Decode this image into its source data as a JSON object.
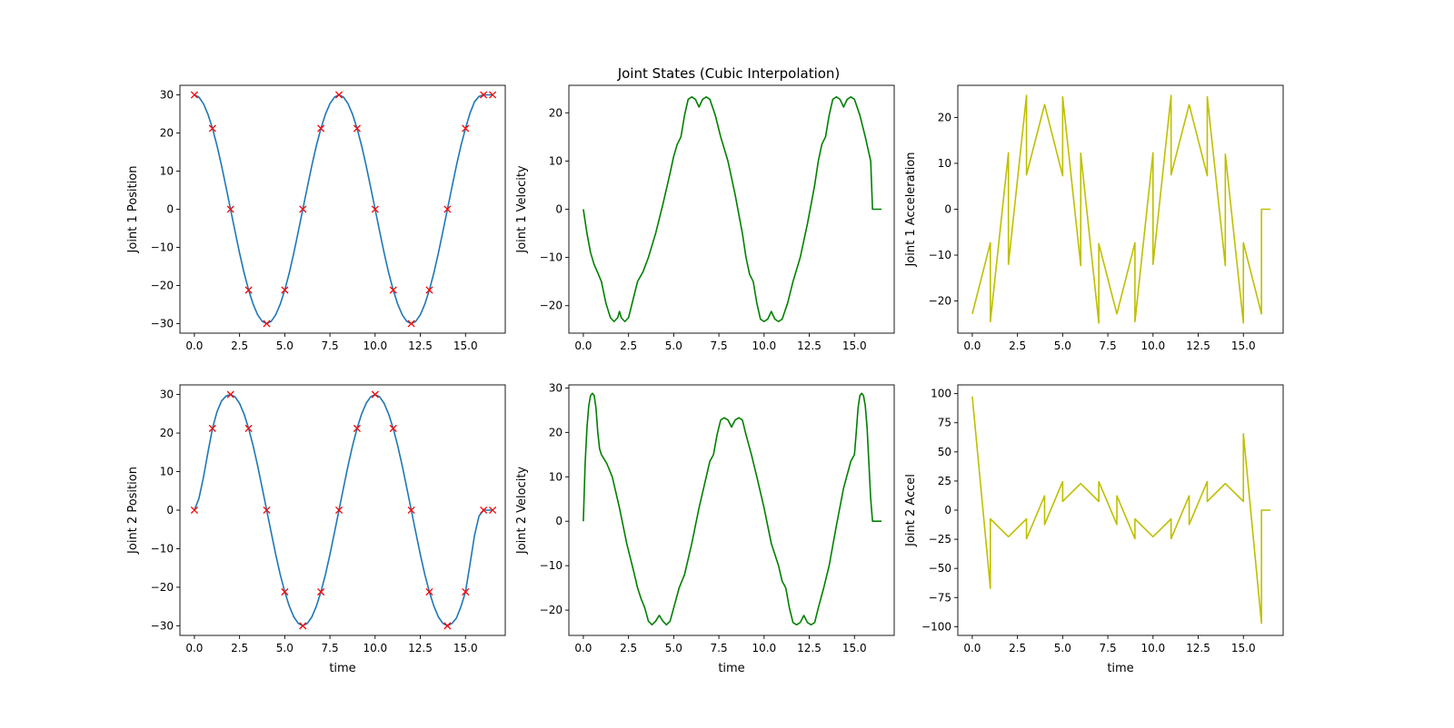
{
  "figure": {
    "title": "Joint States (Cubic Interpolation)",
    "colors": {
      "position": "#1f77b4",
      "velocity": "#008000",
      "acceleration": "#bfbf00",
      "marker": "#ff0000"
    }
  },
  "chart_data": [
    {
      "type": "line",
      "title": "",
      "xlabel": "",
      "ylabel": "Joint 1 Position",
      "xlim": [
        -0.8,
        17.2
      ],
      "ylim": [
        -32.5,
        32.5
      ],
      "xticks": [
        0,
        2.5,
        5,
        7.5,
        10,
        12.5,
        15
      ],
      "xtick_labels": [
        "0.0",
        "2.5",
        "5.0",
        "7.5",
        "10.0",
        "12.5",
        "15.0"
      ],
      "yticks": [
        -30,
        -20,
        -10,
        0,
        10,
        20,
        30
      ],
      "ytick_labels": [
        "−30",
        "−20",
        "−10",
        "0",
        "10",
        "20",
        "30"
      ],
      "series": [
        {
          "kind": "line",
          "color": "#1f77b4",
          "x": [
            0,
            0.25,
            0.5,
            0.75,
            1,
            1.25,
            1.5,
            1.75,
            2,
            2.25,
            2.5,
            2.75,
            3,
            3.25,
            3.5,
            3.75,
            4,
            4.25,
            4.5,
            4.75,
            5,
            5.25,
            5.5,
            5.75,
            6,
            6.25,
            6.5,
            6.75,
            7,
            7.25,
            7.5,
            7.75,
            8,
            8.25,
            8.5,
            8.75,
            9,
            9.25,
            9.5,
            9.75,
            10,
            10.25,
            10.5,
            10.75,
            11,
            11.25,
            11.5,
            11.75,
            12,
            12.25,
            12.5,
            12.75,
            13,
            13.25,
            13.5,
            13.75,
            14,
            14.25,
            14.5,
            14.75,
            15,
            15.25,
            15.5,
            15.75,
            16,
            16.25,
            16.5
          ],
          "y": [
            30,
            29.4,
            27.7,
            24.9,
            21.2,
            16.7,
            11.5,
            5.8,
            0,
            -5.8,
            -11.5,
            -16.7,
            -21.2,
            -24.9,
            -27.7,
            -29.4,
            -30,
            -29.4,
            -27.7,
            -24.9,
            -21.2,
            -16.7,
            -11.5,
            -5.8,
            0,
            5.8,
            11.5,
            16.7,
            21.2,
            24.9,
            27.7,
            29.4,
            30,
            29.4,
            27.7,
            24.9,
            21.2,
            16.7,
            11.5,
            5.8,
            0,
            -5.8,
            -11.5,
            -16.7,
            -21.2,
            -24.9,
            -27.7,
            -29.4,
            -30,
            -29.4,
            -27.7,
            -24.9,
            -21.2,
            -16.7,
            -11.5,
            -5.8,
            0,
            5.8,
            11.5,
            16.7,
            21.2,
            25.2,
            28.2,
            29.6,
            30,
            30,
            30
          ]
        },
        {
          "kind": "marker",
          "color": "#ff0000",
          "x": [
            0,
            1,
            2,
            3,
            4,
            5,
            6,
            7,
            8,
            9,
            10,
            11,
            12,
            13,
            14,
            15,
            16,
            16.5
          ],
          "y": [
            30,
            21.2,
            0,
            -21.2,
            -30,
            -21.2,
            0,
            21.2,
            30,
            21.2,
            0,
            -21.2,
            -30,
            -21.2,
            0,
            21.2,
            30,
            30
          ]
        }
      ]
    },
    {
      "type": "line",
      "title": "",
      "xlabel": "",
      "ylabel": "Joint 1 Velocity",
      "xlim": [
        -0.8,
        17.2
      ],
      "ylim": [
        -25.7,
        25.7
      ],
      "xticks": [
        0,
        2.5,
        5,
        7.5,
        10,
        12.5,
        15
      ],
      "xtick_labels": [
        "0.0",
        "2.5",
        "5.0",
        "7.5",
        "10.0",
        "12.5",
        "15.0"
      ],
      "yticks": [
        -20,
        -10,
        0,
        10,
        20
      ],
      "ytick_labels": [
        "−20",
        "−10",
        "0",
        "10",
        "20"
      ],
      "series": [
        {
          "kind": "line",
          "color": "#008000",
          "x": [
            0,
            0.2,
            0.4,
            0.6,
            0.8,
            1,
            1.25,
            1.5,
            1.7,
            1.9,
            2,
            2.1,
            2.3,
            2.5,
            2.7,
            3,
            3.3,
            3.6,
            4,
            4.4,
            4.8,
            5,
            5.2,
            5.4,
            5.6,
            5.8,
            6,
            6.2,
            6.4,
            6.6,
            6.8,
            7,
            7.3,
            7.6,
            8,
            8.4,
            8.8,
            9,
            9.2,
            9.4,
            9.6,
            9.8,
            10,
            10.2,
            10.4,
            10.6,
            10.8,
            11,
            11.3,
            11.6,
            12,
            12.4,
            12.8,
            13,
            13.2,
            13.4,
            13.6,
            13.8,
            14,
            14.2,
            14.4,
            14.6,
            14.8,
            15,
            15.3,
            15.6,
            15.9,
            16,
            16.5
          ],
          "y": [
            0,
            -5,
            -9,
            -11.5,
            -13.2,
            -15,
            -19.5,
            -22.5,
            -23.3,
            -22.5,
            -21.2,
            -22.5,
            -23.3,
            -22.5,
            -19.5,
            -15,
            -13,
            -10,
            -5,
            1,
            7.5,
            11,
            13.5,
            15,
            19.5,
            22.8,
            23.3,
            22.8,
            21.2,
            22.8,
            23.3,
            22.8,
            19.5,
            15,
            10,
            3,
            -5,
            -10,
            -13.5,
            -15,
            -19.5,
            -22.8,
            -23.3,
            -22.8,
            -21.2,
            -22.8,
            -23.3,
            -22.8,
            -19.5,
            -15,
            -10,
            -3,
            5,
            10,
            13.5,
            15,
            19.5,
            22.8,
            23.3,
            22.8,
            21.2,
            22.8,
            23.3,
            22.8,
            19.5,
            15,
            10,
            0,
            0
          ]
        }
      ]
    },
    {
      "type": "line",
      "title": "",
      "xlabel": "",
      "ylabel": "Joint 1 Acceleration",
      "xlim": [
        -0.8,
        17.2
      ],
      "ylim": [
        -27,
        27
      ],
      "xticks": [
        0,
        2.5,
        5,
        7.5,
        10,
        12.5,
        15
      ],
      "xtick_labels": [
        "0.0",
        "2.5",
        "5.0",
        "7.5",
        "10.0",
        "12.5",
        "15.0"
      ],
      "yticks": [
        -20,
        -10,
        0,
        10,
        20
      ],
      "ytick_labels": [
        "−20",
        "−10",
        "0",
        "10",
        "20"
      ],
      "series": [
        {
          "kind": "line",
          "color": "#bfbf00",
          "x": [
            0,
            1,
            1,
            2,
            2,
            3,
            3,
            4,
            5,
            5,
            6,
            6,
            7,
            7,
            8,
            9,
            9,
            10,
            10,
            11,
            11,
            12,
            13,
            13,
            14,
            14,
            15,
            15,
            16,
            16,
            16.5
          ],
          "y": [
            -22.8,
            -7.3,
            -24.5,
            12.3,
            -12,
            24.8,
            7.5,
            22.8,
            7.3,
            24.5,
            -12.3,
            12.2,
            -24.8,
            -7.5,
            -22.8,
            -7.3,
            -24.5,
            12.3,
            -12,
            24.8,
            7.5,
            22.8,
            7.3,
            24.5,
            -12.3,
            12,
            -24.8,
            -7.3,
            -22.8,
            0,
            0
          ]
        }
      ]
    },
    {
      "type": "line",
      "title": "",
      "xlabel": "time",
      "ylabel": "Joint 2 Position",
      "xlim": [
        -0.8,
        17.2
      ],
      "ylim": [
        -32.5,
        32.5
      ],
      "xticks": [
        0,
        2.5,
        5,
        7.5,
        10,
        12.5,
        15
      ],
      "xtick_labels": [
        "0.0",
        "2.5",
        "5.0",
        "7.5",
        "10.0",
        "12.5",
        "15.0"
      ],
      "yticks": [
        -30,
        -20,
        -10,
        0,
        10,
        20,
        30
      ],
      "ytick_labels": [
        "−30",
        "−20",
        "−10",
        "0",
        "10",
        "20",
        "30"
      ],
      "series": [
        {
          "kind": "line",
          "color": "#1f77b4",
          "x": [
            0,
            0.25,
            0.5,
            0.75,
            1,
            1.25,
            1.5,
            1.75,
            2,
            2.25,
            2.5,
            2.75,
            3,
            3.25,
            3.5,
            3.75,
            4,
            4.25,
            4.5,
            4.75,
            5,
            5.25,
            5.5,
            5.75,
            6,
            6.25,
            6.5,
            6.75,
            7,
            7.25,
            7.5,
            7.75,
            8,
            8.25,
            8.5,
            8.75,
            9,
            9.25,
            9.5,
            9.75,
            10,
            10.25,
            10.5,
            10.75,
            11,
            11.25,
            11.5,
            11.75,
            12,
            12.25,
            12.5,
            12.75,
            13,
            13.25,
            13.5,
            13.75,
            14,
            14.25,
            14.5,
            14.75,
            15,
            15.25,
            15.5,
            15.75,
            16,
            16.25,
            16.5
          ],
          "y": [
            0,
            3,
            8.5,
            15,
            21.2,
            25.5,
            28.3,
            29.6,
            30,
            29.4,
            27.7,
            24.9,
            21.2,
            16.7,
            11.5,
            5.8,
            0,
            -5.8,
            -11.5,
            -16.7,
            -21.2,
            -24.9,
            -27.7,
            -29.4,
            -30,
            -29.4,
            -27.7,
            -24.9,
            -21.2,
            -16.7,
            -11.5,
            -5.8,
            0,
            5.8,
            11.5,
            16.7,
            21.2,
            24.9,
            27.7,
            29.4,
            30,
            29.4,
            27.7,
            24.9,
            21.2,
            16.7,
            11.5,
            5.8,
            0,
            -5.8,
            -11.5,
            -16.7,
            -21.2,
            -24.9,
            -27.7,
            -29.4,
            -30,
            -29.4,
            -28,
            -25,
            -21.2,
            -14,
            -6.5,
            -1.5,
            0,
            0,
            0
          ]
        },
        {
          "kind": "marker",
          "color": "#ff0000",
          "x": [
            0,
            1,
            2,
            3,
            4,
            5,
            6,
            7,
            8,
            9,
            10,
            11,
            12,
            13,
            14,
            15,
            16,
            16.5
          ],
          "y": [
            0,
            21.2,
            30,
            21.2,
            0,
            -21.2,
            -30,
            -21.2,
            0,
            21.2,
            30,
            21.2,
            0,
            -21.2,
            -30,
            -21.2,
            0,
            0
          ]
        }
      ]
    },
    {
      "type": "line",
      "title": "",
      "xlabel": "time",
      "ylabel": "Joint 2 Velocity",
      "xlim": [
        -0.8,
        17.2
      ],
      "ylim": [
        -25.7,
        30.7
      ],
      "xticks": [
        0,
        2.5,
        5,
        7.5,
        10,
        12.5,
        15
      ],
      "xtick_labels": [
        "0.0",
        "2.5",
        "5.0",
        "7.5",
        "10.0",
        "12.5",
        "15.0"
      ],
      "yticks": [
        -20,
        -10,
        0,
        10,
        20,
        30
      ],
      "ytick_labels": [
        "−20",
        "−10",
        "0",
        "10",
        "20",
        "30"
      ],
      "series": [
        {
          "kind": "line",
          "color": "#008000",
          "x": [
            0,
            0.1,
            0.2,
            0.3,
            0.4,
            0.5,
            0.6,
            0.7,
            0.8,
            0.9,
            1,
            1.3,
            1.6,
            2,
            2.4,
            2.8,
            3,
            3.2,
            3.4,
            3.6,
            3.8,
            4,
            4.2,
            4.4,
            4.6,
            4.8,
            5,
            5.3,
            5.6,
            6,
            6.4,
            6.8,
            7,
            7.2,
            7.4,
            7.6,
            7.8,
            8,
            8.2,
            8.4,
            8.6,
            8.8,
            9,
            9.3,
            9.6,
            10,
            10.4,
            10.8,
            11,
            11.2,
            11.4,
            11.6,
            11.8,
            12,
            12.2,
            12.4,
            12.6,
            12.8,
            13,
            13.3,
            13.6,
            14,
            14.4,
            14.8,
            15,
            15.1,
            15.2,
            15.3,
            15.4,
            15.5,
            15.6,
            15.7,
            15.8,
            15.9,
            16,
            16.5
          ],
          "y": [
            0,
            13,
            21,
            26,
            28.3,
            28.8,
            28.3,
            25.5,
            20,
            16.3,
            15,
            13,
            10,
            3,
            -5,
            -11.5,
            -15,
            -17.5,
            -19.5,
            -22.5,
            -23.3,
            -22.5,
            -21.2,
            -22.5,
            -23.3,
            -22.5,
            -19.5,
            -15,
            -12,
            -5,
            3,
            10,
            13.5,
            15,
            19.5,
            22.8,
            23.3,
            22.8,
            21.2,
            22.8,
            23.3,
            22.8,
            19.5,
            15,
            10,
            3,
            -5,
            -10,
            -13.5,
            -15,
            -19.5,
            -22.8,
            -23.3,
            -22.8,
            -21.2,
            -22.8,
            -23.3,
            -22.8,
            -19.5,
            -15,
            -10,
            -1,
            7.5,
            13.5,
            15,
            20,
            25.5,
            28.3,
            28.8,
            28.3,
            26,
            21,
            13,
            5,
            0,
            0
          ]
        }
      ]
    },
    {
      "type": "line",
      "title": "",
      "xlabel": "time",
      "ylabel": "Joint 2 Accel",
      "xlim": [
        -0.8,
        17.2
      ],
      "ylim": [
        -107.5,
        107.5
      ],
      "xticks": [
        0,
        2.5,
        5,
        7.5,
        10,
        12.5,
        15
      ],
      "xtick_labels": [
        "0.0",
        "2.5",
        "5.0",
        "7.5",
        "10.0",
        "12.5",
        "15.0"
      ],
      "yticks": [
        -100,
        -75,
        -50,
        -25,
        0,
        25,
        50,
        75,
        100
      ],
      "ytick_labels": [
        "−100",
        "−75",
        "−50",
        "−25",
        "0",
        "25",
        "50",
        "75",
        "100"
      ],
      "series": [
        {
          "kind": "line",
          "color": "#bfbf00",
          "x": [
            0,
            1,
            1,
            2,
            3,
            3,
            4,
            4,
            5,
            5,
            6,
            7,
            7,
            8,
            8,
            9,
            9,
            10,
            11,
            11,
            12,
            12,
            13,
            13,
            14,
            15,
            15,
            16,
            16,
            16.5
          ],
          "y": [
            97.5,
            -67,
            -7.5,
            -22.8,
            -7.5,
            -24.5,
            12.3,
            -12.3,
            24.5,
            7.5,
            22.8,
            7.5,
            24.5,
            -12.3,
            12.3,
            -24.5,
            -7.5,
            -22.8,
            -7.5,
            -24.5,
            12.3,
            -12.3,
            24.5,
            7.5,
            22.8,
            7.5,
            65.5,
            -97,
            0,
            0
          ]
        }
      ]
    }
  ]
}
